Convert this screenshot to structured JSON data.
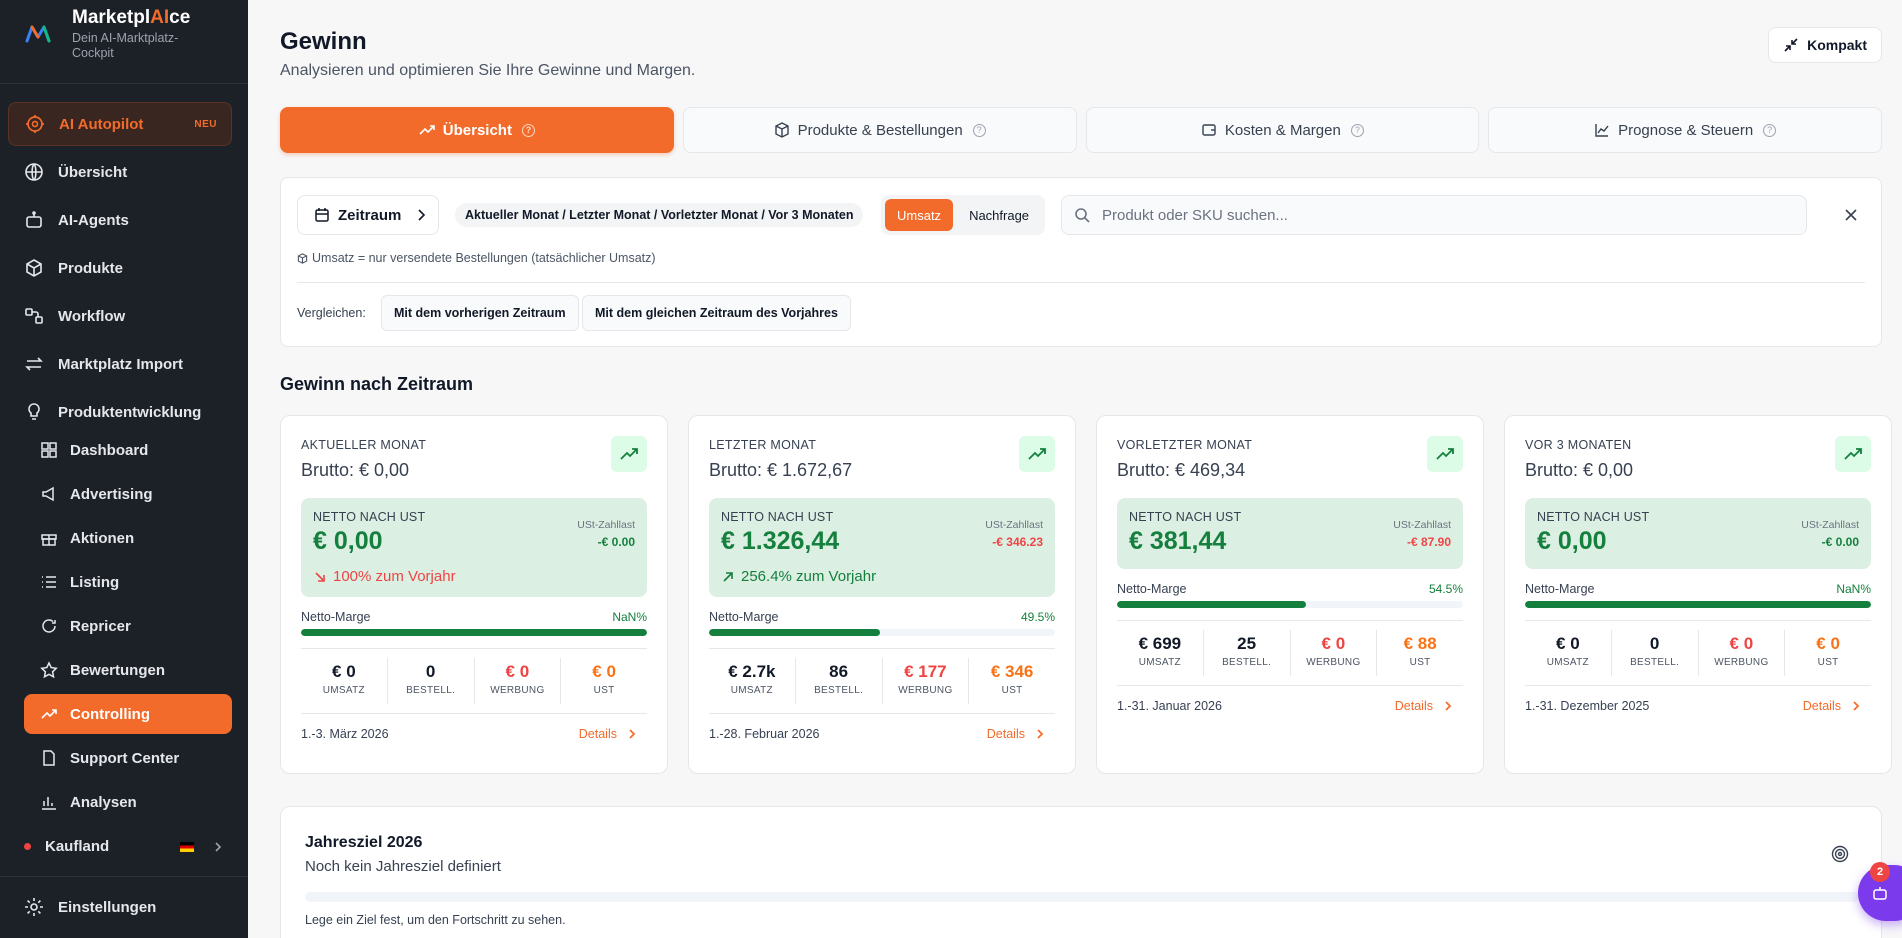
{
  "brand": {
    "name_prefix": "Marketpl",
    "name_ai": "AI",
    "name_suffix": "ce",
    "subtitle": "Dein AI-Marktplatz-Cockpit"
  },
  "sidebar": {
    "autopilot": {
      "label": "AI Autopilot",
      "badge": "NEU"
    },
    "items": [
      {
        "label": "Übersicht",
        "icon": "globe-icon"
      },
      {
        "label": "AI-Agents",
        "icon": "robot-icon"
      },
      {
        "label": "Produkte",
        "icon": "box-icon"
      },
      {
        "label": "Workflow",
        "icon": "workflow-icon"
      },
      {
        "label": "Marktplatz Import",
        "icon": "arrows-icon"
      },
      {
        "label": "Produktentwicklung",
        "icon": "lightbulb-icon"
      }
    ],
    "sub_items": [
      {
        "label": "Dashboard",
        "icon": "grid-icon"
      },
      {
        "label": "Advertising",
        "icon": "megaphone-icon"
      },
      {
        "label": "Aktionen",
        "icon": "gift-icon"
      },
      {
        "label": "Listing",
        "icon": "list-icon"
      },
      {
        "label": "Repricer",
        "icon": "refresh-icon"
      },
      {
        "label": "Bewertungen",
        "icon": "star-icon"
      },
      {
        "label": "Controlling",
        "icon": "trend-icon",
        "active": true
      },
      {
        "label": "Support Center",
        "icon": "document-icon"
      },
      {
        "label": "Analysen",
        "icon": "bar-chart-icon"
      }
    ],
    "marketplace": "Kaufland",
    "settings": "Einstellungen"
  },
  "header": {
    "title": "Gewinn",
    "subtitle": "Analysieren und optimieren Sie Ihre Gewinne und Margen.",
    "kompakt": "Kompakt"
  },
  "tabs": [
    {
      "label": "Übersicht",
      "active": true
    },
    {
      "label": "Produkte & Bestellungen"
    },
    {
      "label": "Kosten & Margen"
    },
    {
      "label": "Prognose & Steuern"
    }
  ],
  "filters": {
    "zeitraum": "Zeitraum",
    "period_chip": "Aktueller Monat / Letzter Monat / Vorletzter Monat / Vor 3 Monaten",
    "mode_umsatz": "Umsatz",
    "mode_nachfrage": "Nachfrage",
    "search_placeholder": "Produkt oder SKU suchen...",
    "note": "Umsatz = nur versendete Bestellungen (tatsächlicher Umsatz)",
    "compare_label": "Vergleichen:",
    "compare_prev": "Mit dem vorherigen Zeitraum",
    "compare_year": "Mit dem gleichen Zeitraum des Vorjahres"
  },
  "section_title": "Gewinn nach Zeitraum",
  "cards": [
    {
      "label": "AKTUELLER MONAT",
      "brutto": "Brutto: € 0,00",
      "netto_label": "NETTO NACH UST",
      "netto": "€ 0,00",
      "ust_label": "USt-Zahllast",
      "ust": "-€ 0.00",
      "ust_color": "#15803d",
      "yoy": "100% zum Vorjahr",
      "yoy_dir": "down",
      "marge_label": "Netto-Marge",
      "marge": "NaN%",
      "marge_fill": 1.0,
      "stats": [
        {
          "val": "€ 0",
          "lbl": "UMSATZ"
        },
        {
          "val": "0",
          "lbl": "BESTELL."
        },
        {
          "val": "€ 0",
          "lbl": "WERBUNG"
        },
        {
          "val": "€ 0",
          "lbl": "UST"
        }
      ],
      "date": "1.-3. März 2026",
      "details": "Details"
    },
    {
      "label": "LETZTER MONAT",
      "brutto": "Brutto: € 1.672,67",
      "netto_label": "NETTO NACH UST",
      "netto": "€ 1.326,44",
      "ust_label": "USt-Zahllast",
      "ust": "-€ 346.23",
      "ust_color": "#ef4444",
      "yoy": "256.4% zum Vorjahr",
      "yoy_dir": "up",
      "marge_label": "Netto-Marge",
      "marge": "49.5%",
      "marge_fill": 0.495,
      "stats": [
        {
          "val": "€ 2.7k",
          "lbl": "UMSATZ"
        },
        {
          "val": "86",
          "lbl": "BESTELL."
        },
        {
          "val": "€ 177",
          "lbl": "WERBUNG"
        },
        {
          "val": "€ 346",
          "lbl": "UST"
        }
      ],
      "date": "1.-28. Februar 2026",
      "details": "Details"
    },
    {
      "label": "VORLETZTER MONAT",
      "brutto": "Brutto: € 469,34",
      "netto_label": "NETTO NACH UST",
      "netto": "€ 381,44",
      "ust_label": "USt-Zahllast",
      "ust": "-€ 87.90",
      "ust_color": "#ef4444",
      "yoy": "",
      "yoy_dir": "",
      "marge_label": "Netto-Marge",
      "marge": "54.5%",
      "marge_fill": 0.545,
      "stats": [
        {
          "val": "€ 699",
          "lbl": "UMSATZ"
        },
        {
          "val": "25",
          "lbl": "BESTELL."
        },
        {
          "val": "€ 0",
          "lbl": "WERBUNG"
        },
        {
          "val": "€ 88",
          "lbl": "UST"
        }
      ],
      "date": "1.-31. Januar 2026",
      "details": "Details"
    },
    {
      "label": "VOR 3 MONATEN",
      "brutto": "Brutto: € 0,00",
      "netto_label": "NETTO NACH UST",
      "netto": "€ 0,00",
      "ust_label": "USt-Zahllast",
      "ust": "-€ 0.00",
      "ust_color": "#15803d",
      "yoy": "",
      "yoy_dir": "",
      "marge_label": "Netto-Marge",
      "marge": "NaN%",
      "marge_fill": 1.0,
      "stats": [
        {
          "val": "€ 0",
          "lbl": "UMSATZ"
        },
        {
          "val": "0",
          "lbl": "BESTELL."
        },
        {
          "val": "€ 0",
          "lbl": "WERBUNG"
        },
        {
          "val": "€ 0",
          "lbl": "UST"
        }
      ],
      "date": "1.-31. Dezember 2025",
      "details": "Details"
    }
  ],
  "goal": {
    "title": "Jahresziel 2026",
    "subtitle": "Noch kein Jahresziel definiert",
    "hint": "Lege ein Ziel fest, um den Fortschritt zu sehen."
  },
  "fab_badge": "2",
  "colors": {
    "accent": "#f26b2b",
    "sidebar_bg": "#1c2128",
    "positive": "#15803d",
    "negative": "#ef4444",
    "fab": "#7c3aed"
  }
}
